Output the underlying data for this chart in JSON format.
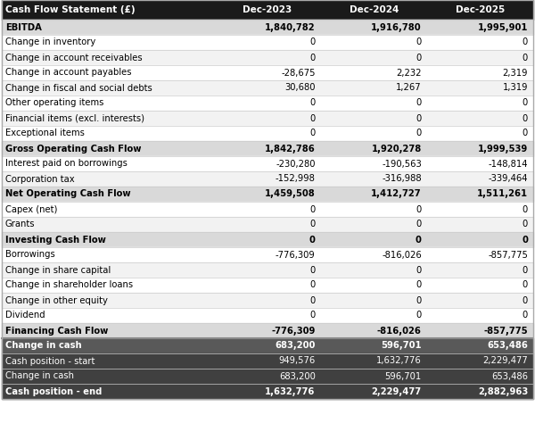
{
  "title_col": "Cash Flow Statement (£)",
  "col_headers": [
    "Dec-2023",
    "Dec-2024",
    "Dec-2025"
  ],
  "rows": [
    {
      "label": "EBITDA",
      "values": [
        "1,840,782",
        "1,916,780",
        "1,995,901"
      ],
      "style": "bold_data",
      "bg": "#d9d9d9"
    },
    {
      "label": "Change in inventory",
      "values": [
        "0",
        "0",
        "0"
      ],
      "style": "normal",
      "bg": "#ffffff"
    },
    {
      "label": "Change in account receivables",
      "values": [
        "0",
        "0",
        "0"
      ],
      "style": "normal",
      "bg": "#f2f2f2"
    },
    {
      "label": "Change in account payables",
      "values": [
        "-28,675",
        "2,232",
        "2,319"
      ],
      "style": "normal",
      "bg": "#ffffff"
    },
    {
      "label": "Change in fiscal and social debts",
      "values": [
        "30,680",
        "1,267",
        "1,319"
      ],
      "style": "normal",
      "bg": "#f2f2f2"
    },
    {
      "label": "Other operating items",
      "values": [
        "0",
        "0",
        "0"
      ],
      "style": "normal",
      "bg": "#ffffff"
    },
    {
      "label": "Financial items (excl. interests)",
      "values": [
        "0",
        "0",
        "0"
      ],
      "style": "normal",
      "bg": "#f2f2f2"
    },
    {
      "label": "Exceptional items",
      "values": [
        "0",
        "0",
        "0"
      ],
      "style": "normal",
      "bg": "#ffffff"
    },
    {
      "label": "Gross Operating Cash Flow",
      "values": [
        "1,842,786",
        "1,920,278",
        "1,999,539"
      ],
      "style": "bold_data",
      "bg": "#d9d9d9"
    },
    {
      "label": "Interest paid on borrowings",
      "values": [
        "-230,280",
        "-190,563",
        "-148,814"
      ],
      "style": "normal",
      "bg": "#ffffff"
    },
    {
      "label": "Corporation tax",
      "values": [
        "-152,998",
        "-316,988",
        "-339,464"
      ],
      "style": "normal",
      "bg": "#f2f2f2"
    },
    {
      "label": "Net Operating Cash Flow",
      "values": [
        "1,459,508",
        "1,412,727",
        "1,511,261"
      ],
      "style": "bold_data",
      "bg": "#d9d9d9"
    },
    {
      "label": "Capex (net)",
      "values": [
        "0",
        "0",
        "0"
      ],
      "style": "normal",
      "bg": "#ffffff"
    },
    {
      "label": "Grants",
      "values": [
        "0",
        "0",
        "0"
      ],
      "style": "normal",
      "bg": "#f2f2f2"
    },
    {
      "label": "Investing Cash Flow",
      "values": [
        "0",
        "0",
        "0"
      ],
      "style": "bold_data",
      "bg": "#d9d9d9"
    },
    {
      "label": "Borrowings",
      "values": [
        "-776,309",
        "-816,026",
        "-857,775"
      ],
      "style": "normal",
      "bg": "#ffffff"
    },
    {
      "label": "Change in share capital",
      "values": [
        "0",
        "0",
        "0"
      ],
      "style": "normal",
      "bg": "#f2f2f2"
    },
    {
      "label": "Change in shareholder loans",
      "values": [
        "0",
        "0",
        "0"
      ],
      "style": "normal",
      "bg": "#ffffff"
    },
    {
      "label": "Change in other equity",
      "values": [
        "0",
        "0",
        "0"
      ],
      "style": "normal",
      "bg": "#f2f2f2"
    },
    {
      "label": "Dividend",
      "values": [
        "0",
        "0",
        "0"
      ],
      "style": "normal",
      "bg": "#ffffff"
    },
    {
      "label": "Financing Cash Flow",
      "values": [
        "-776,309",
        "-816,026",
        "-857,775"
      ],
      "style": "bold_data",
      "bg": "#d9d9d9"
    },
    {
      "label": "Change in cash",
      "values": [
        "683,200",
        "596,701",
        "653,486"
      ],
      "style": "bold_dark",
      "bg": "#595959"
    },
    {
      "label": "Cash position - start",
      "values": [
        "949,576",
        "1,632,776",
        "2,229,477"
      ],
      "style": "normal_dark",
      "bg": "#404040"
    },
    {
      "label": "Change in cash",
      "values": [
        "683,200",
        "596,701",
        "653,486"
      ],
      "style": "normal_dark",
      "bg": "#404040"
    },
    {
      "label": "Cash position - end",
      "values": [
        "1,632,776",
        "2,229,477",
        "2,882,963"
      ],
      "style": "bold_dark",
      "bg": "#404040"
    }
  ],
  "header_bg": "#1a1a1a",
  "header_text": "#ffffff",
  "bold_row_text": "#000000",
  "normal_text": "#000000",
  "dark_row_text": "#ffffff"
}
